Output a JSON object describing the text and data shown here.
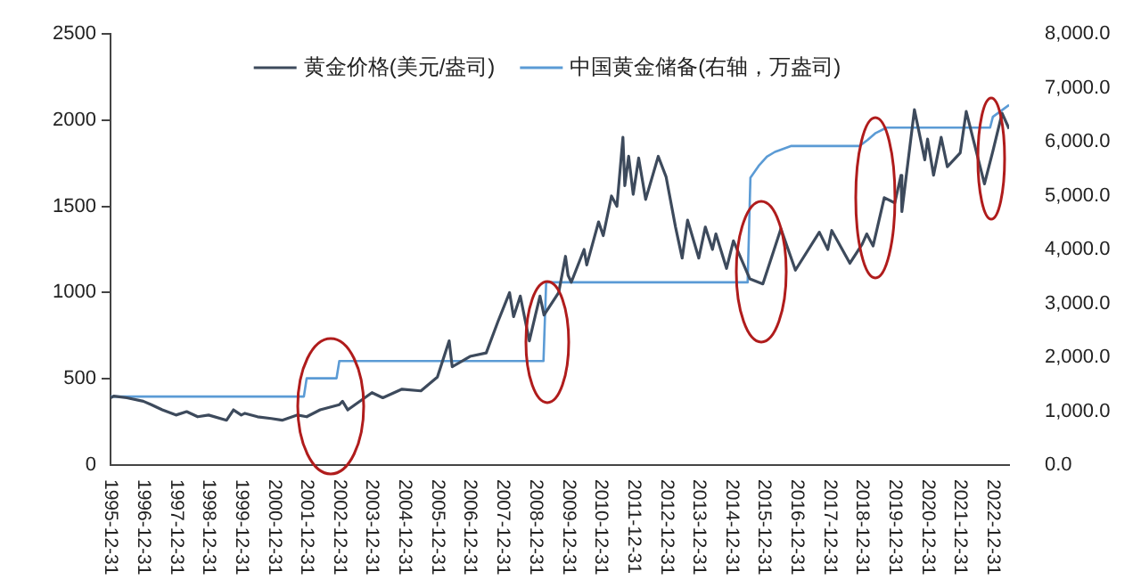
{
  "chart_data": {
    "type": "line",
    "legend": "top",
    "grid": false,
    "marker": "none",
    "line_style": "solid",
    "xlim": [
      "1995-12-31",
      "2023-06-30"
    ],
    "xticks": [
      "1995-12-31",
      "1996-12-31",
      "1997-12-31",
      "1998-12-31",
      "1999-12-31",
      "2000-12-31",
      "2001-12-31",
      "2002-12-31",
      "2003-12-31",
      "2004-12-31",
      "2005-12-31",
      "2006-12-31",
      "2007-12-31",
      "2008-12-31",
      "2009-12-31",
      "2010-12-31",
      "2011-12-31",
      "2012-12-31",
      "2013-12-31",
      "2014-12-31",
      "2015-12-31",
      "2016-12-31",
      "2017-12-31",
      "2018-12-31",
      "2019-12-31",
      "2020-12-31",
      "2021-12-31",
      "2022-12-31"
    ],
    "ylim": [
      0,
      2500
    ],
    "yticks": [
      0,
      500,
      1000,
      1500,
      2000,
      2500
    ],
    "y2lim": [
      0,
      8000
    ],
    "y2ticks": [
      {
        "value": 0,
        "label": "0.0"
      },
      {
        "value": 1000,
        "label": "1,000.0"
      },
      {
        "value": 2000,
        "label": "2,000.0"
      },
      {
        "value": 3000,
        "label": "3,000.0"
      },
      {
        "value": 4000,
        "label": "4,000.0"
      },
      {
        "value": 5000,
        "label": "5,000.0"
      },
      {
        "value": 6000,
        "label": "6,000.0"
      },
      {
        "value": 7000,
        "label": "7,000.0"
      },
      {
        "value": 8000,
        "label": "8,000.0"
      }
    ],
    "series": [
      {
        "name": "黄金价格(美元/盎司)",
        "color": "#3d4a5c",
        "x": [
          "1995-12-31",
          "1996-02-05",
          "1996-06-30",
          "1996-12-31",
          "1997-03-31",
          "1997-07-31",
          "1997-12-31",
          "1998-04-30",
          "1998-08-31",
          "1998-12-31",
          "1999-07-20",
          "1999-10-05",
          "1999-12-31",
          "2000-02-10",
          "2000-06-30",
          "2000-11-30",
          "2001-04-01",
          "2001-09-20",
          "2001-12-31",
          "2002-05-31",
          "2002-12-31",
          "2003-02-05",
          "2003-04-05",
          "2003-12-31",
          "2004-04-30",
          "2004-12-01",
          "2005-06-30",
          "2005-12-31",
          "2006-05-12",
          "2006-06-15",
          "2006-12-31",
          "2007-06-30",
          "2007-11-07",
          "2008-03-17",
          "2008-05-01",
          "2008-07-15",
          "2008-10-24",
          "2008-12-31",
          "2009-02-20",
          "2009-04-06",
          "2009-09-17",
          "2009-12-02",
          "2009-12-31",
          "2010-02-05",
          "2010-06-28",
          "2010-07-28",
          "2010-12-07",
          "2011-01-28",
          "2011-04-30",
          "2011-06-30",
          "2011-09-05",
          "2011-09-26",
          "2011-11-08",
          "2011-12-29",
          "2012-02-28",
          "2012-05-16",
          "2012-10-04",
          "2012-12-31",
          "2013-04-15",
          "2013-06-28",
          "2013-08-28",
          "2013-12-31",
          "2014-03-14",
          "2014-06-02",
          "2014-07-10",
          "2014-11-06",
          "2015-01-22",
          "2015-07-24",
          "2015-12-17",
          "2016-07-06",
          "2016-12-15",
          "2017-09-08",
          "2017-12-12",
          "2018-01-25",
          "2018-08-16",
          "2018-12-31",
          "2019-02-20",
          "2019-05-02",
          "2019-09-04",
          "2019-12-31",
          "2020-03-09",
          "2020-03-19",
          "2020-08-06",
          "2020-11-30",
          "2020-12-31",
          "2021-03-08",
          "2021-06-01",
          "2021-08-09",
          "2021-12-31",
          "2022-03-08",
          "2022-09-28",
          "2022-12-31",
          "2023-04-13",
          "2023-06-30"
        ],
        "values": [
          390,
          400,
          390,
          370,
          350,
          320,
          290,
          310,
          280,
          290,
          260,
          320,
          290,
          300,
          280,
          270,
          260,
          290,
          280,
          320,
          350,
          370,
          320,
          420,
          390,
          440,
          430,
          510,
          720,
          570,
          630,
          650,
          830,
          1000,
          860,
          980,
          720,
          870,
          980,
          870,
          1000,
          1210,
          1100,
          1060,
          1250,
          1160,
          1410,
          1330,
          1560,
          1500,
          1900,
          1620,
          1790,
          1570,
          1780,
          1540,
          1790,
          1670,
          1380,
          1200,
          1420,
          1200,
          1380,
          1250,
          1340,
          1140,
          1300,
          1080,
          1050,
          1370,
          1130,
          1350,
          1250,
          1360,
          1170,
          1280,
          1340,
          1270,
          1550,
          1520,
          1680,
          1470,
          2060,
          1770,
          1890,
          1680,
          1900,
          1730,
          1810,
          2050,
          1630,
          1820,
          2040,
          1950
        ]
      },
      {
        "name": "中国黄金储备(右轴，万盎司)",
        "color": "#5b9bd5",
        "axis": "y2",
        "x": [
          "1995-12-31",
          "2001-11-30",
          "2001-12-31",
          "2002-11-30",
          "2002-12-31",
          "2009-03-31",
          "2009-04-30",
          "2015-06-30",
          "2015-07-31",
          "2015-10-31",
          "2016-01-31",
          "2016-04-30",
          "2016-10-31",
          "2018-11-30",
          "2019-02-28",
          "2019-05-31",
          "2019-09-30",
          "2022-11-30",
          "2022-12-31",
          "2023-06-30"
        ],
        "values": [
          1270,
          1270,
          1610,
          1610,
          1930,
          1930,
          3390,
          3390,
          5330,
          5550,
          5720,
          5810,
          5920,
          5920,
          6030,
          6160,
          6260,
          6260,
          6460,
          6680
        ]
      }
    ]
  }
}
